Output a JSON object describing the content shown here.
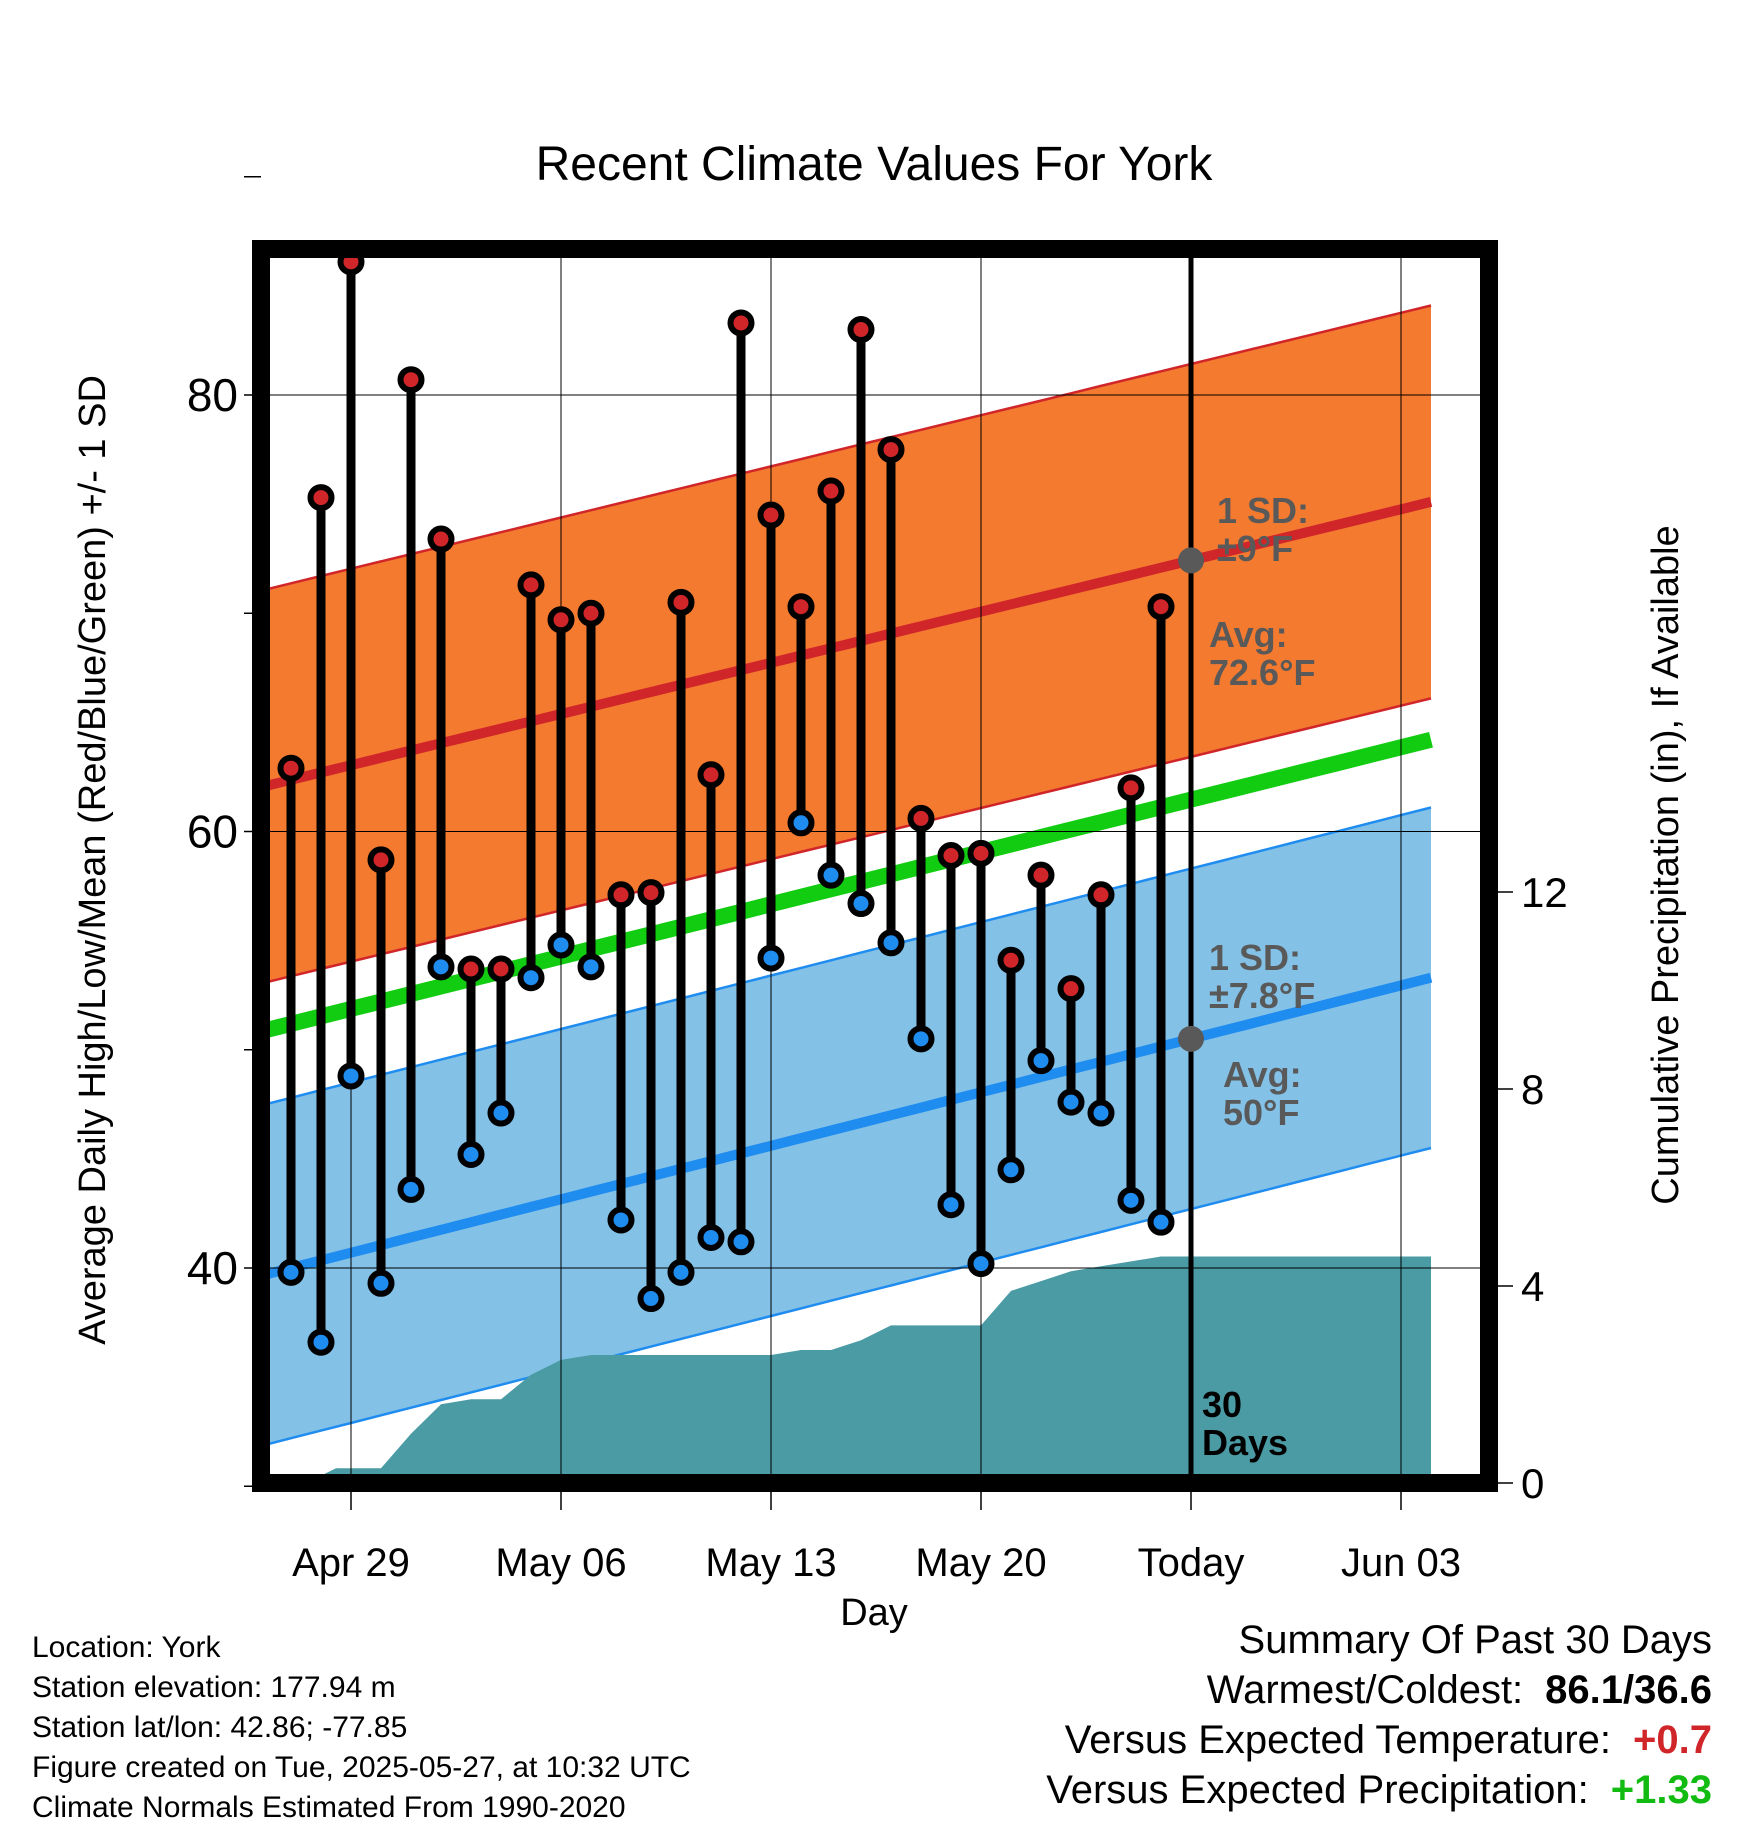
{
  "chart_data": {
    "type": "line",
    "title": "Recent Climate Values For York",
    "xlabel": "Day",
    "ylabel": "Average Daily High/Low/Mean (Red/Blue/Green) +/- 1 SD",
    "y2label": "Cumulative Precipitation (in), If Available",
    "ylim": [
      29,
      92
    ],
    "y2lim": [
      0,
      24
    ],
    "xlim_day": [
      -4.0,
      36.0
    ],
    "x_ticks": [
      {
        "day": 0,
        "label": "Apr 29"
      },
      {
        "day": 7,
        "label": "May 06"
      },
      {
        "day": 14,
        "label": "May 13"
      },
      {
        "day": 21,
        "label": "May 20"
      },
      {
        "day": 28,
        "label": "Today"
      },
      {
        "day": 35,
        "label": "Jun 03"
      }
    ],
    "y_ticks": [
      40,
      60,
      80
    ],
    "y2_ticks": [
      0,
      4,
      8,
      12
    ],
    "today_day": 28,
    "days": [
      -2,
      -1,
      0,
      1,
      2,
      3,
      4,
      5,
      6,
      7,
      8,
      9,
      10,
      11,
      12,
      13,
      14,
      15,
      16,
      17,
      18,
      19,
      20,
      21,
      22,
      23,
      24,
      25,
      26,
      27
    ],
    "highs": [
      62.9,
      75.3,
      86.1,
      58.7,
      80.7,
      73.4,
      53.7,
      53.7,
      71.3,
      69.7,
      70.0,
      57.1,
      57.2,
      70.5,
      62.6,
      83.3,
      74.5,
      70.3,
      75.6,
      83.0,
      77.5,
      60.6,
      58.9,
      59.0,
      54.1,
      58.0,
      52.8,
      57.1,
      62.0,
      70.3
    ],
    "lows": [
      39.8,
      36.6,
      48.8,
      39.3,
      43.6,
      53.8,
      45.2,
      47.1,
      53.3,
      54.8,
      53.8,
      42.2,
      38.6,
      39.8,
      41.4,
      41.2,
      54.2,
      60.4,
      58.0,
      56.7,
      54.9,
      50.5,
      42.9,
      40.2,
      44.5,
      49.5,
      47.6,
      47.1,
      43.1,
      42.1
    ],
    "normal_high": {
      "start": 61.7,
      "end": 75.1
    },
    "normal_low": {
      "start": 39.3,
      "end": 53.3
    },
    "normal_mean": {
      "start": 50.5,
      "end": 64.2
    },
    "sd_high": 9,
    "sd_low": 7.8,
    "precip_days": [
      -1.5,
      -0.5,
      1,
      2,
      3,
      4,
      5,
      6,
      7,
      8,
      10,
      11,
      12,
      13,
      14,
      15,
      16,
      17,
      18,
      19,
      20,
      21,
      22,
      23,
      24,
      25,
      26,
      27,
      28,
      36
    ],
    "precip_cum": [
      0,
      0.3,
      0.3,
      1.0,
      1.6,
      1.7,
      1.7,
      2.2,
      2.5,
      2.6,
      2.6,
      2.6,
      2.6,
      2.6,
      2.6,
      2.7,
      2.7,
      2.9,
      3.2,
      3.2,
      3.2,
      3.2,
      3.9,
      4.1,
      4.3,
      4.4,
      4.5,
      4.6,
      4.6,
      4.6
    ],
    "annotations": {
      "high_sd": [
        "1 SD:",
        "±9°F"
      ],
      "high_avg": [
        "Avg:",
        "72.6°F"
      ],
      "low_sd": [
        "1 SD:",
        "±7.8°F"
      ],
      "low_avg": [
        "Avg:",
        "50°F"
      ],
      "window": [
        "30",
        "Days"
      ]
    },
    "colors": {
      "high_band": "#f47a30",
      "high_line": "#d0262a",
      "low_band": "#83c1e6",
      "low_line": "#1f8cf0",
      "mean_line": "#11cc11",
      "precip": "#4a9ba4",
      "high_dot": "#d0262a",
      "low_dot": "#1f8cf0",
      "avg_marker": "#595959"
    }
  },
  "footer": {
    "location": "Location: York",
    "elevation": "Station elevation: 177.94 m",
    "latlon": "Station lat/lon: 42.86; -77.85",
    "created": "Figure created on Tue, 2025-05-27, at 10:32 UTC",
    "normals": "Climate Normals Estimated From 1990-2020"
  },
  "summary": {
    "heading": "Summary Of Past 30 Days",
    "warm_cold_label": "Warmest/Coldest:",
    "warm_cold_value": "86.1/36.6",
    "temp_label": "Versus Expected Temperature:",
    "temp_value": "+0.7",
    "temp_color": "#d0262a",
    "precip_label": "Versus Expected Precipitation:",
    "precip_value": "+1.33",
    "precip_color": "#11bb11"
  }
}
